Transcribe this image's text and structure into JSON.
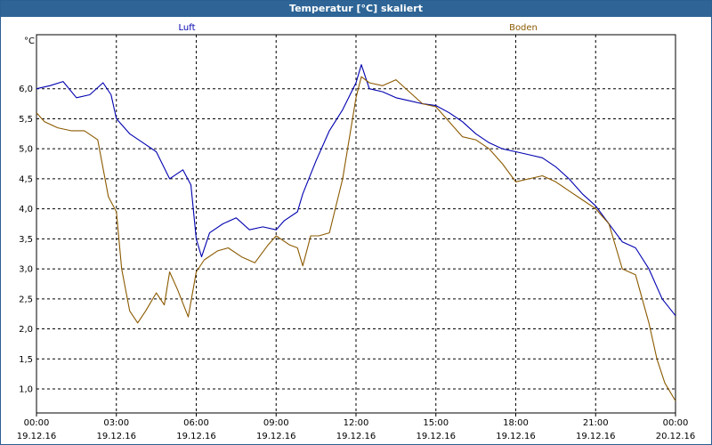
{
  "window": {
    "title": "Temperatur [°C] skaliert"
  },
  "chart_data": {
    "type": "line",
    "ylabel": "°C",
    "ylim": [
      0.6,
      6.9
    ],
    "y_ticks": [
      "6,0",
      "5,5",
      "5,0",
      "4,5",
      "4,0",
      "3,5",
      "3,0",
      "2,5",
      "2,0",
      "1,5",
      "1,0"
    ],
    "x_ticks": [
      {
        "time": "00:00",
        "date": "19.12.16"
      },
      {
        "time": "03:00",
        "date": "19.12.16"
      },
      {
        "time": "06:00",
        "date": "19.12.16"
      },
      {
        "time": "09:00",
        "date": "19.12.16"
      },
      {
        "time": "12:00",
        "date": "19.12.16"
      },
      {
        "time": "15:00",
        "date": "19.12.16"
      },
      {
        "time": "18:00",
        "date": "19.12.16"
      },
      {
        "time": "21:00",
        "date": "19.12.16"
      },
      {
        "time": "00:00",
        "date": "20.12.16"
      }
    ],
    "xlim": [
      "19.12.16 00:00",
      "20.12.16 00:00"
    ],
    "grid": true,
    "series": [
      {
        "name": "Luft",
        "color": "#0000b0",
        "x_hours": [
          0,
          0.5,
          1,
          1.5,
          2,
          2.5,
          2.8,
          3,
          3.5,
          4,
          4.5,
          5,
          5.5,
          5.8,
          6,
          6.2,
          6.5,
          7,
          7.5,
          8,
          8.5,
          9,
          9.3,
          9.8,
          10,
          10.5,
          11,
          11.5,
          12,
          12.2,
          12.5,
          13,
          13.5,
          14,
          14.5,
          15,
          15.5,
          16,
          16.5,
          17,
          17.5,
          18,
          18.5,
          19,
          19.5,
          20,
          20.5,
          21,
          21.5,
          22,
          22.5,
          23,
          23.5,
          24
        ],
        "values": [
          6.0,
          6.05,
          6.12,
          5.85,
          5.9,
          6.1,
          5.9,
          5.5,
          5.25,
          5.1,
          4.95,
          4.5,
          4.65,
          4.4,
          3.5,
          3.2,
          3.6,
          3.75,
          3.85,
          3.65,
          3.7,
          3.65,
          3.8,
          3.95,
          4.25,
          4.8,
          5.3,
          5.65,
          6.1,
          6.4,
          6.0,
          5.95,
          5.85,
          5.8,
          5.75,
          5.72,
          5.6,
          5.45,
          5.25,
          5.1,
          5.0,
          4.95,
          4.9,
          4.85,
          4.7,
          4.5,
          4.25,
          4.05,
          3.75,
          3.45,
          3.35,
          3.0,
          2.5,
          2.22
        ]
      },
      {
        "name": "Boden",
        "color": "#8b5a00",
        "x_hours": [
          0,
          0.3,
          0.8,
          1.3,
          1.8,
          2.3,
          2.7,
          3,
          3.2,
          3.5,
          3.8,
          4.1,
          4.5,
          4.8,
          5,
          5.3,
          5.7,
          6,
          6.3,
          6.8,
          7.2,
          7.7,
          8.2,
          8.7,
          9,
          9.5,
          9.8,
          10,
          10.3,
          10.6,
          11,
          11.5,
          12,
          12.2,
          12.5,
          13,
          13.5,
          14,
          14.5,
          15,
          15.5,
          16,
          16.5,
          17,
          17.5,
          18,
          18.5,
          19,
          19.5,
          20,
          20.5,
          21,
          21.5,
          22,
          22.5,
          23,
          23.3,
          23.6,
          24
        ],
        "values": [
          5.6,
          5.45,
          5.35,
          5.3,
          5.3,
          5.15,
          4.2,
          3.95,
          3.0,
          2.3,
          2.1,
          2.3,
          2.6,
          2.4,
          2.95,
          2.65,
          2.2,
          2.95,
          3.15,
          3.3,
          3.35,
          3.2,
          3.1,
          3.4,
          3.55,
          3.4,
          3.35,
          3.05,
          3.55,
          3.55,
          3.6,
          4.5,
          5.85,
          6.2,
          6.1,
          6.05,
          6.15,
          5.95,
          5.75,
          5.7,
          5.45,
          5.2,
          5.15,
          5.0,
          4.75,
          4.45,
          4.5,
          4.55,
          4.45,
          4.3,
          4.15,
          4.0,
          3.75,
          3.0,
          2.9,
          2.1,
          1.5,
          1.1,
          0.8
        ]
      }
    ]
  }
}
